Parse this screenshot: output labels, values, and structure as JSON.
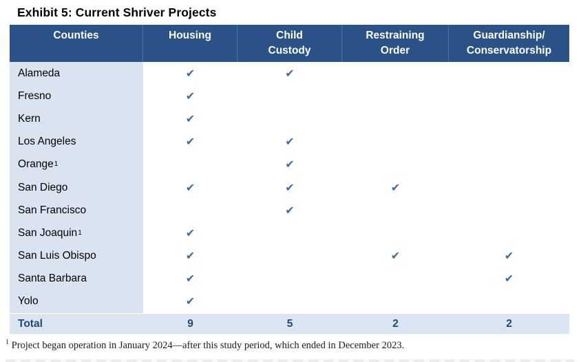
{
  "title": "Exhibit 5: Current Shriver Projects",
  "table": {
    "columns": [
      {
        "line1": "Counties",
        "line2": ""
      },
      {
        "line1": "Housing",
        "line2": ""
      },
      {
        "line1": "Child",
        "line2": "Custody"
      },
      {
        "line1": "Restraining",
        "line2": "Order"
      },
      {
        "line1": "Guardianship/",
        "line2": "Conservatorship"
      }
    ],
    "column_keys": [
      "housing",
      "child-custody",
      "restraining-order",
      "guardianship-conservatorship"
    ],
    "rows": [
      {
        "county": "Alameda",
        "footnote_ref": "",
        "checks": [
          "✔",
          "✔",
          "",
          ""
        ]
      },
      {
        "county": "Fresno",
        "footnote_ref": "",
        "checks": [
          "✔",
          "",
          "",
          ""
        ]
      },
      {
        "county": "Kern",
        "footnote_ref": "",
        "checks": [
          "✔",
          "",
          "",
          ""
        ]
      },
      {
        "county": "Los Angeles",
        "footnote_ref": "",
        "checks": [
          "✔",
          "✔",
          "",
          ""
        ]
      },
      {
        "county": "Orange",
        "footnote_ref": "1",
        "checks": [
          "",
          "✔",
          "",
          ""
        ]
      },
      {
        "county": "San Diego",
        "footnote_ref": "",
        "checks": [
          "✔",
          "✔",
          "✔",
          ""
        ]
      },
      {
        "county": "San Francisco",
        "footnote_ref": "",
        "checks": [
          "",
          "✔",
          "",
          ""
        ]
      },
      {
        "county": "San Joaquin",
        "footnote_ref": "1",
        "checks": [
          "✔",
          "",
          "",
          ""
        ]
      },
      {
        "county": "San Luis Obispo",
        "footnote_ref": "",
        "checks": [
          "✔",
          "",
          "✔",
          "✔"
        ]
      },
      {
        "county": "Santa Barbara",
        "footnote_ref": "",
        "checks": [
          "✔",
          "",
          "",
          "✔"
        ]
      },
      {
        "county": "Yolo",
        "footnote_ref": "",
        "checks": [
          "✔",
          "",
          "",
          ""
        ]
      }
    ],
    "total": {
      "label": "Total",
      "values": [
        "9",
        "5",
        "2",
        "2"
      ]
    }
  },
  "icons": {
    "check": "✔"
  },
  "footnote": {
    "marker": "1",
    "text": " Project began operation in January 2024—after this study period, which ended in December 2023."
  },
  "colors": {
    "header_bg": "#2a5286",
    "header_text": "#ffffff",
    "county_column_bg": "#dae3f0",
    "total_row_bg": "#dbe5f2",
    "check": "#3f6ba3",
    "total_text": "#1e4976",
    "title_text": "#000000"
  }
}
